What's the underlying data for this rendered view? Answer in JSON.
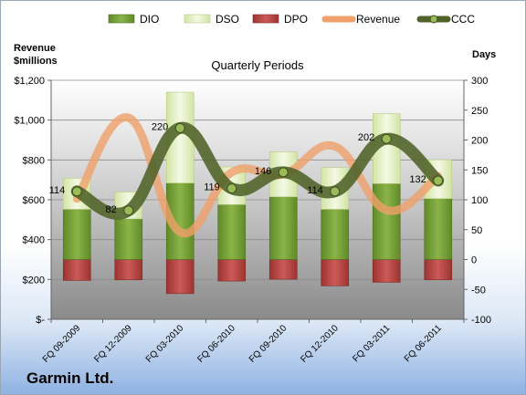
{
  "chart_data": {
    "type": "bar",
    "title": "Quarterly Periods",
    "company": "Garmin Ltd.",
    "left_axis_title_line1": "Revenue",
    "left_axis_title_line2": "$millions",
    "right_axis_title": "Days",
    "left_ylim": [
      0,
      1200
    ],
    "right_ylim": [
      -100,
      300
    ],
    "left_ticks": [
      "$-",
      "$200",
      "$400",
      "$600",
      "$800",
      "$1,000",
      "$1,200"
    ],
    "right_ticks": [
      "-100",
      "-50",
      "0",
      "50",
      "100",
      "150",
      "200",
      "250",
      "300"
    ],
    "categories": [
      "FQ 09-2009",
      "FQ 12-2009",
      "FQ 03-2010",
      "FQ 06-2010",
      "FQ 09-2010",
      "FQ 12-2010",
      "FQ 03-2011",
      "FQ 06-2011"
    ],
    "legend": [
      "DIO",
      "DSO",
      "DPO",
      "Revenue",
      "CCC"
    ],
    "legend_position": "top",
    "grid": true,
    "series": [
      {
        "name": "DIO",
        "axis": "right",
        "color": "#77a03a",
        "values": [
          84,
          68,
          128,
          92,
          105,
          84,
          127,
          102
        ]
      },
      {
        "name": "DSO",
        "axis": "right",
        "color": "#e4f0c2",
        "values": [
          52,
          45,
          152,
          63,
          75,
          70,
          117,
          65
        ]
      },
      {
        "name": "DPO",
        "axis": "right",
        "color": "#c0504d",
        "values": [
          -35,
          -34,
          -57,
          -36,
          -33,
          -44,
          -38,
          -34
        ]
      },
      {
        "name": "Revenue",
        "axis": "left",
        "color": "#f0a06a",
        "values": [
          605,
          1012,
          438,
          738,
          728,
          868,
          548,
          718
        ]
      },
      {
        "name": "CCC",
        "axis": "right",
        "color": "#4f6228",
        "values": [
          114,
          82,
          220,
          119,
          146,
          114,
          202,
          132
        ],
        "labels": [
          "114",
          "82",
          "220",
          "119",
          "146",
          "114",
          "202",
          "132"
        ]
      }
    ]
  }
}
